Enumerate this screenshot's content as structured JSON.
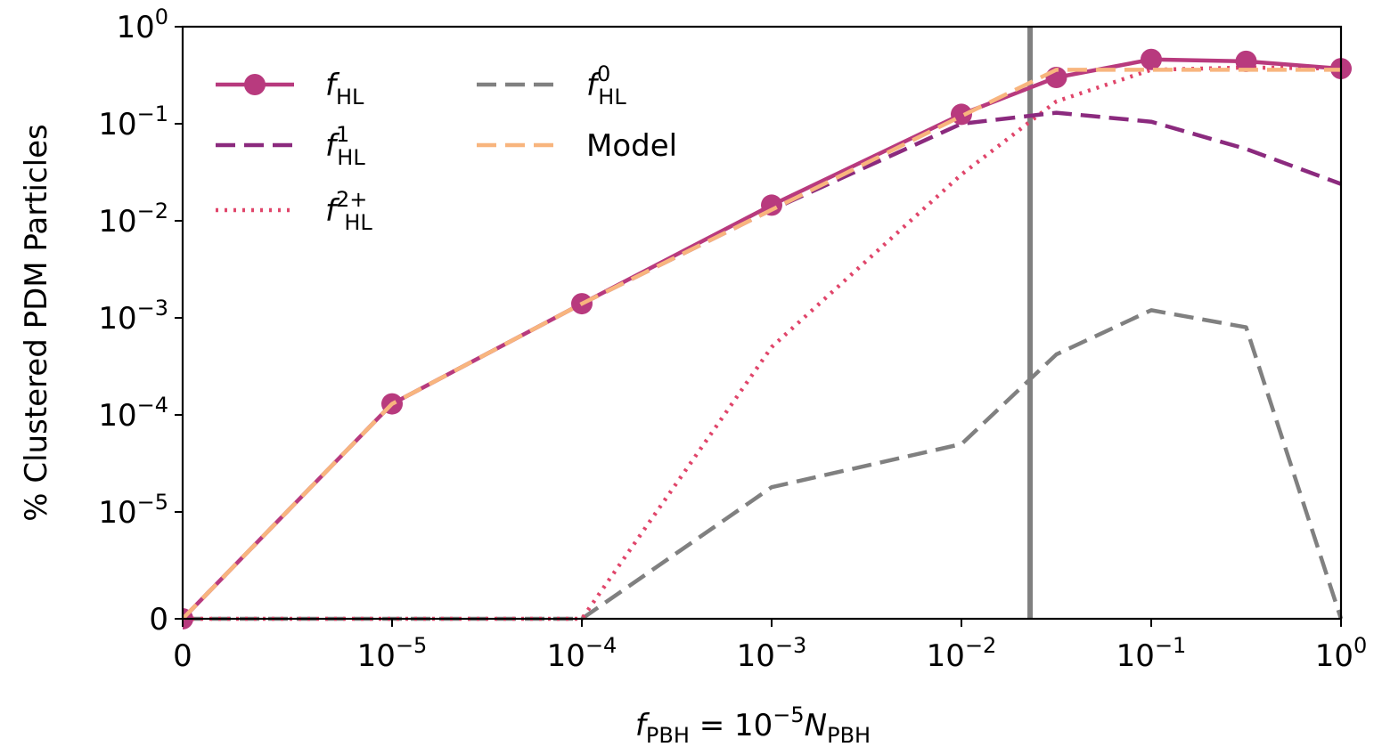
{
  "chart_data": {
    "type": "line",
    "x_scale": "symlog",
    "y_scale": "symlog",
    "xlabel": {
      "main": "f",
      "sub": "PBH",
      "mid": " = 10",
      "sup": "−5",
      "main2": "N",
      "sub2": "PBH"
    },
    "ylabel": "% Clustered PDM Particles",
    "xlim": [
      0,
      1
    ],
    "ylim": [
      0,
      1
    ],
    "x_ticks": [
      {
        "value": 0,
        "base": "0",
        "exp": ""
      },
      {
        "value": 1e-05,
        "base": "10",
        "exp": "−5"
      },
      {
        "value": 0.0001,
        "base": "10",
        "exp": "−4"
      },
      {
        "value": 0.001,
        "base": "10",
        "exp": "−3"
      },
      {
        "value": 0.01,
        "base": "10",
        "exp": "−2"
      },
      {
        "value": 0.1,
        "base": "10",
        "exp": "−1"
      },
      {
        "value": 1,
        "base": "10",
        "exp": "0"
      }
    ],
    "y_ticks": [
      {
        "value": 0,
        "base": "0",
        "exp": ""
      },
      {
        "value": 1e-05,
        "base": "10",
        "exp": "−5"
      },
      {
        "value": 0.0001,
        "base": "10",
        "exp": "−4"
      },
      {
        "value": 0.001,
        "base": "10",
        "exp": "−3"
      },
      {
        "value": 0.01,
        "base": "10",
        "exp": "−2"
      },
      {
        "value": 0.1,
        "base": "10",
        "exp": "−1"
      },
      {
        "value": 1,
        "base": "10",
        "exp": "0"
      }
    ],
    "vline": {
      "x": 0.023,
      "color": "#808080"
    },
    "x": [
      0,
      1e-05,
      0.0001,
      0.001,
      0.01,
      0.03162,
      0.1,
      0.3162,
      1
    ],
    "series": [
      {
        "key": "f_HL",
        "name": {
          "main": "f",
          "sub": "HL",
          "sup": ""
        },
        "color": "#b83a7e",
        "style": "solid",
        "marker": true,
        "values": [
          0,
          0.00013,
          0.0014,
          0.0145,
          0.125,
          0.3,
          0.46,
          0.44,
          0.37
        ]
      },
      {
        "key": "f_HL_1",
        "name": {
          "main": "f",
          "sub": "HL",
          "sup": "1"
        },
        "color": "#8b2a7e",
        "style": "dashed",
        "marker": false,
        "values": [
          0,
          0.00013,
          0.0014,
          0.013,
          0.1,
          0.13,
          0.105,
          0.055,
          0.024
        ]
      },
      {
        "key": "f_HL_2plus",
        "name": {
          "main": "f",
          "sub": "HL",
          "sup": "2+"
        },
        "color": "#e0456a",
        "style": "dotted",
        "marker": false,
        "values": [
          0,
          0,
          0,
          0.0005,
          0.03,
          0.17,
          0.36,
          0.38,
          0.37
        ]
      },
      {
        "key": "f_HL_0",
        "name": {
          "main": "f",
          "sub": "HL",
          "sup": "0"
        },
        "color": "#808080",
        "style": "dashed",
        "marker": false,
        "values": [
          0,
          0,
          0,
          1.8e-05,
          5e-05,
          0.00042,
          0.0012,
          0.0008,
          0
        ]
      },
      {
        "key": "model",
        "name": {
          "main": "Model",
          "sub": "",
          "sup": ""
        },
        "color": "#f8b57e",
        "style": "dashed",
        "marker": false,
        "values": [
          0,
          0.00013,
          0.0014,
          0.013,
          0.12,
          0.36,
          0.36,
          0.36,
          0.36
        ]
      }
    ],
    "legend": {
      "placement": "upper-left",
      "columns": [
        [
          "f_HL",
          "f_HL_1",
          "f_HL_2plus"
        ],
        [
          "f_HL_0",
          "model"
        ]
      ]
    }
  }
}
